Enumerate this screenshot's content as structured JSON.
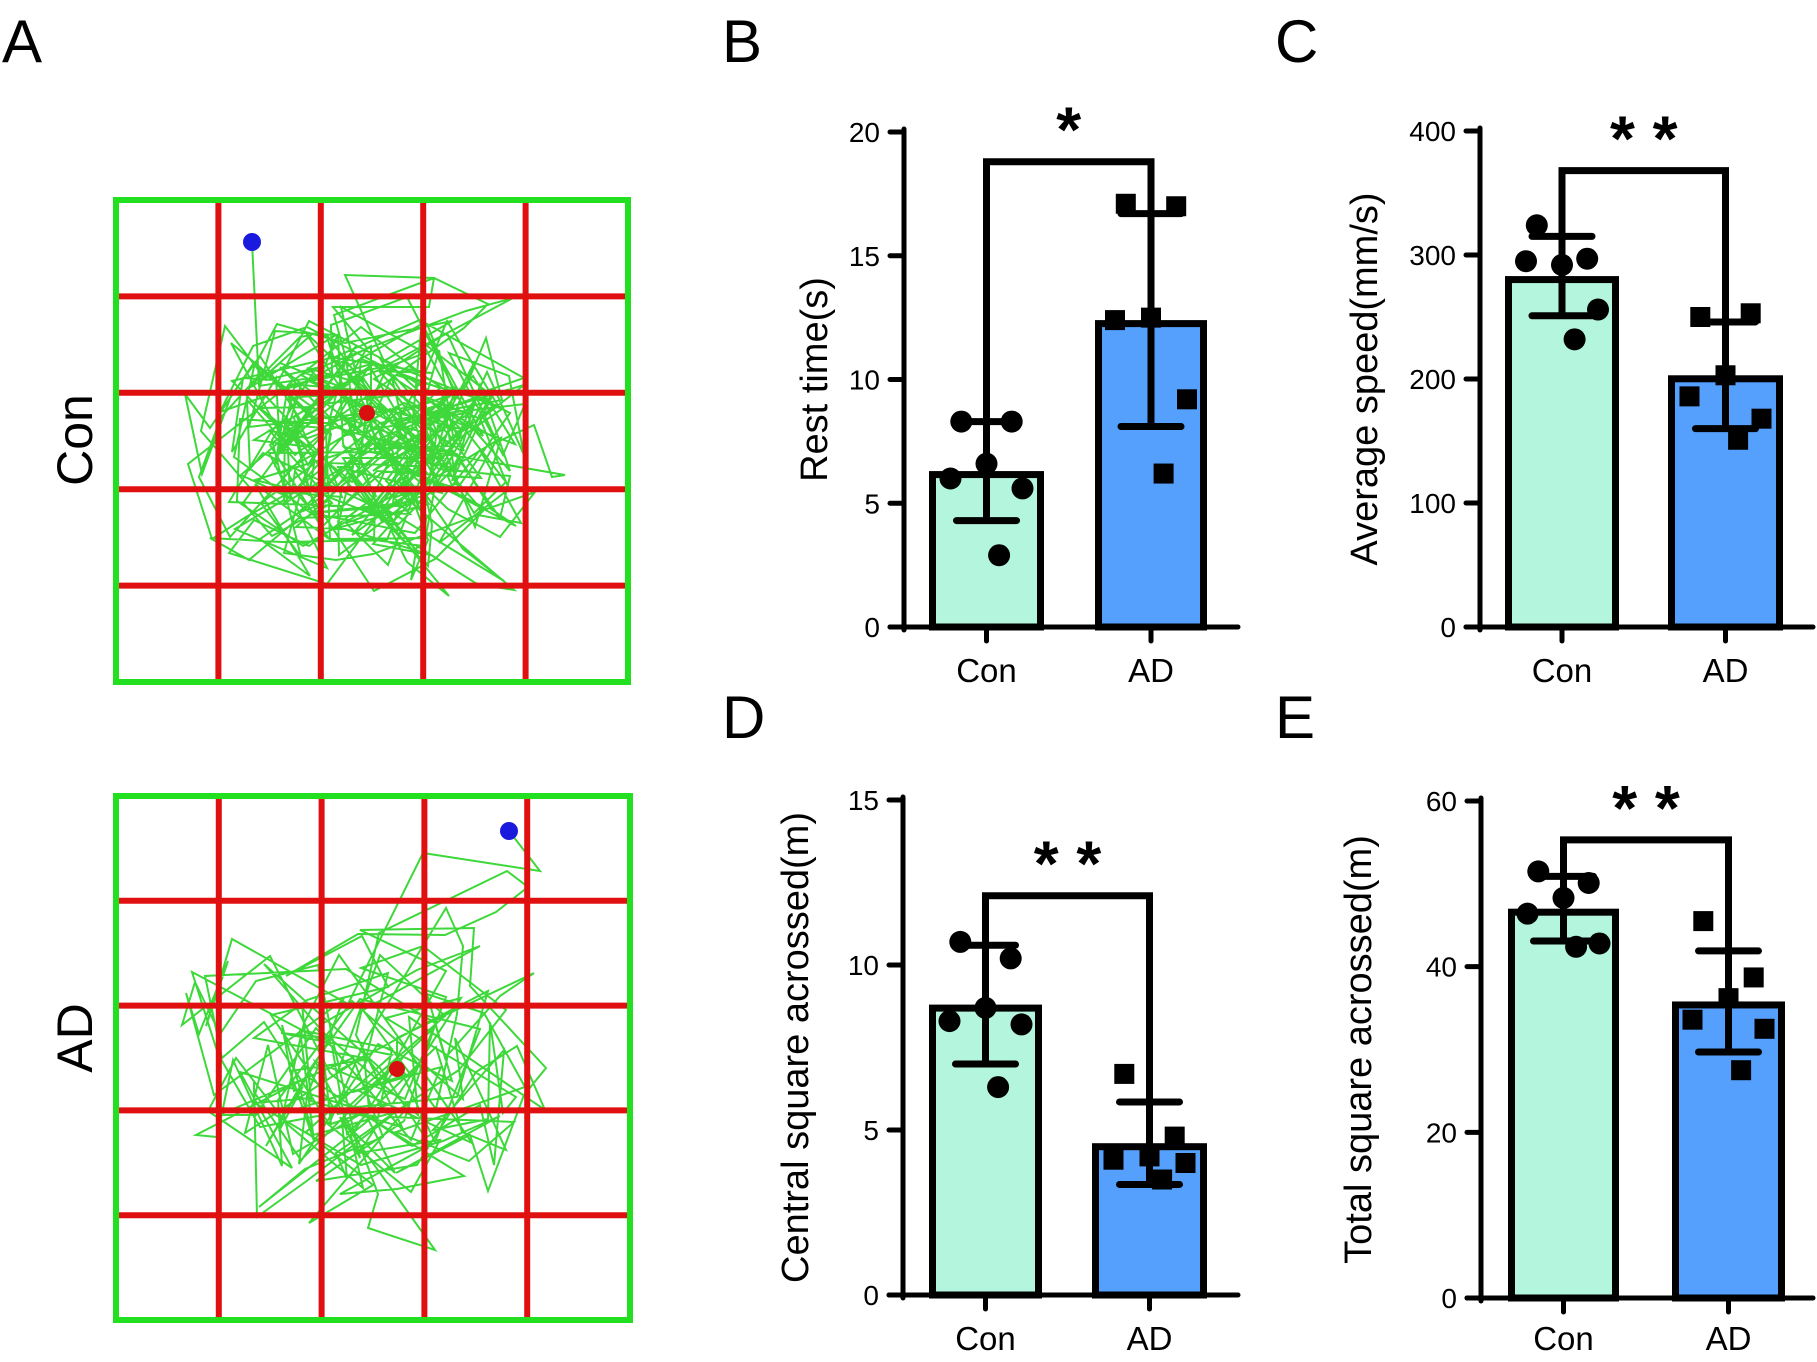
{
  "figure": {
    "panel_letters": [
      "A",
      "B",
      "C",
      "D",
      "E"
    ],
    "panel_a": {
      "rows": [
        {
          "label": "Con"
        },
        {
          "label": "AD"
        }
      ],
      "colors": {
        "arena_border": "#22e01f",
        "grid_lines": "#e01010",
        "track": "#3ed83a",
        "start_dot": "#1a1adf",
        "end_dot": "#d81010"
      },
      "grid_divisions": 5
    },
    "colors": {
      "con_fill": "#b4f5de",
      "ad_fill": "#559ffd",
      "outline": "#000000"
    }
  },
  "chart_data": [
    {
      "panel": "B",
      "type": "bar",
      "categories": [
        "Con",
        "AD"
      ],
      "ylabel": "Rest  time(s)",
      "xlabel": "",
      "ylim": [
        0,
        20
      ],
      "yticks": [
        0,
        5,
        10,
        15,
        20
      ],
      "values": [
        6.3,
        12.4
      ],
      "error_sd": [
        2.0,
        4.3
      ],
      "points": [
        [
          8.3,
          8.3,
          6.6,
          6.0,
          5.6,
          2.9
        ],
        [
          17.1,
          17.0,
          12.5,
          12.4,
          9.2,
          6.2
        ]
      ],
      "significance": {
        "label": "*",
        "bracket_y": 18.8
      }
    },
    {
      "panel": "C",
      "type": "bar",
      "categories": [
        "Con",
        "AD"
      ],
      "ylabel": "Average speed(mm/s)",
      "xlabel": "",
      "ylim": [
        0,
        400
      ],
      "yticks": [
        0,
        100,
        200,
        300,
        400
      ],
      "values": [
        283,
        203
      ],
      "error_sd": [
        32,
        43
      ],
      "points": [
        [
          324,
          297,
          292,
          295,
          256,
          232
        ],
        [
          250,
          253,
          203,
          186,
          168,
          151
        ]
      ],
      "significance": {
        "label": "* *",
        "bracket_y": 368
      }
    },
    {
      "panel": "D",
      "type": "bar",
      "categories": [
        "Con",
        "AD"
      ],
      "ylabel": "Central square acrossed(m)",
      "xlabel": "",
      "ylim": [
        0,
        15
      ],
      "yticks": [
        0,
        5,
        10,
        15
      ],
      "values": [
        8.8,
        4.6
      ],
      "error_sd": [
        1.8,
        1.25
      ],
      "points": [
        [
          10.7,
          10.2,
          8.7,
          8.3,
          8.2,
          6.3
        ],
        [
          6.7,
          4.8,
          4.2,
          4.1,
          4.0,
          3.5
        ]
      ],
      "significance": {
        "label": "* *",
        "bracket_y": 12.1
      }
    },
    {
      "panel": "E",
      "type": "bar",
      "categories": [
        "Con",
        "AD"
      ],
      "ylabel": "Total square  acrossed(m)",
      "xlabel": "",
      "ylim": [
        0,
        60
      ],
      "yticks": [
        0,
        20,
        40,
        60
      ],
      "values": [
        47.0,
        35.8
      ],
      "error_sd": [
        3.9,
        6.1
      ],
      "points": [
        [
          51.5,
          50.1,
          48.3,
          46.4,
          42.8,
          42.4
        ],
        [
          45.5,
          38.7,
          36.2,
          33.6,
          32.5,
          27.5
        ]
      ],
      "significance": {
        "label": "* *",
        "bracket_y": 55.3
      }
    }
  ]
}
